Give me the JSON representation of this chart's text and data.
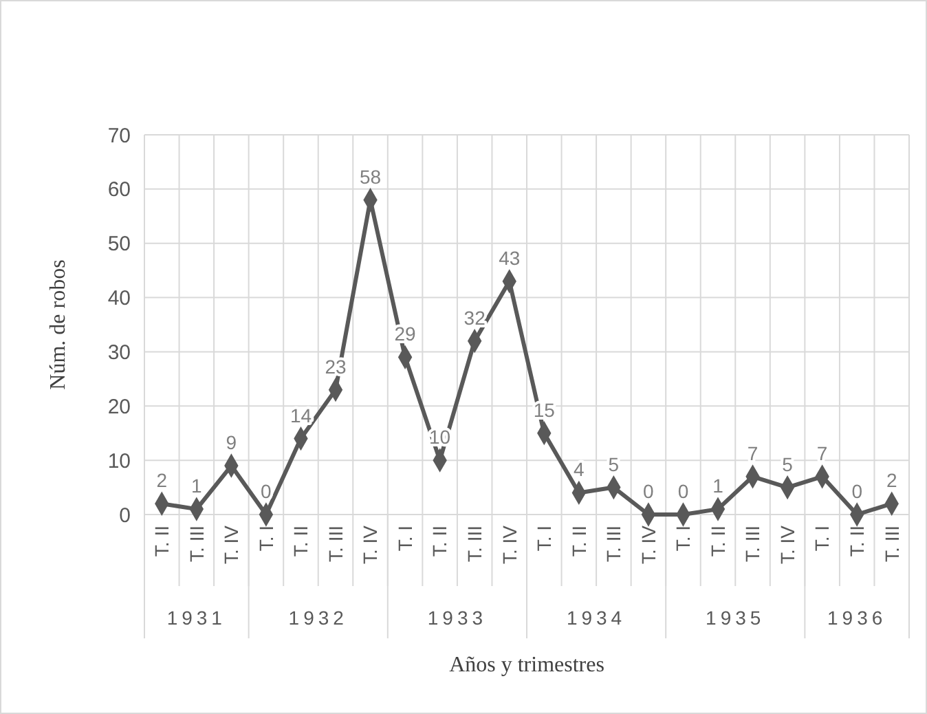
{
  "chart_data": {
    "type": "line",
    "xlabel": "Años y trimestres",
    "ylabel": "Núm. de robos",
    "categories": [
      "T. II",
      "T. III",
      "T. IV",
      "T. I",
      "T. II",
      "T. III",
      "T. IV",
      "T. I",
      "T. II",
      "T. III",
      "T. IV",
      "T. I",
      "T. II",
      "T. III",
      "T. IV",
      "T. I",
      "T. II",
      "T. III",
      "T. IV",
      "T. I",
      "T. II",
      "T. III"
    ],
    "series": [
      {
        "color": "#595959",
        "values": [
          2,
          1,
          9,
          0,
          14,
          23,
          58,
          29,
          10,
          32,
          43,
          15,
          4,
          5,
          0,
          0,
          1,
          7,
          5,
          7,
          0,
          2
        ]
      }
    ],
    "annotations": [
      "1931",
      "1932",
      "1933",
      "1934",
      "1935",
      "1936"
    ],
    "ylim": [
      0,
      70
    ],
    "yticks": [
      0,
      10,
      20,
      30,
      40,
      50,
      60,
      70
    ],
    "grid": true,
    "marker": "diamond",
    "line_style": "solid",
    "data_labels": true
  }
}
